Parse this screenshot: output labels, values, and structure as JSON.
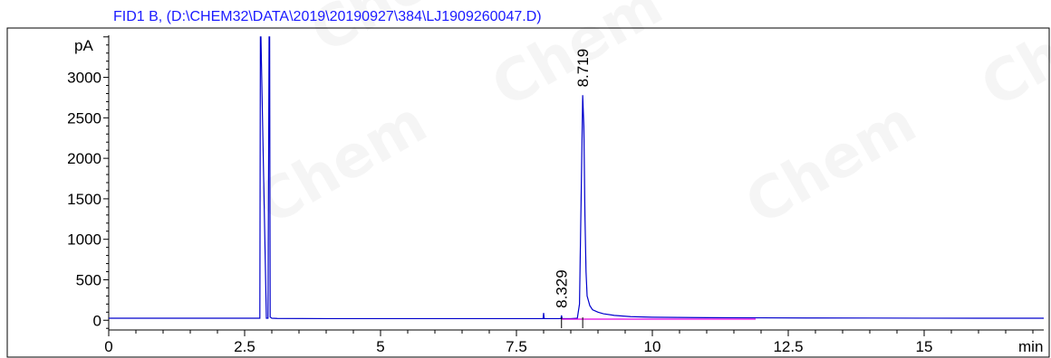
{
  "chart_data": {
    "type": "line",
    "title": "FID1 B,  (D:\\CHEM32\\DATA\\2019\\20190927\\384\\LJ1909260047.D)",
    "title_color": "#1a1aff",
    "ylabel": "pA",
    "xlabel": "min",
    "xlim": [
      0,
      17.2
    ],
    "ylim": [
      -120,
      3520
    ],
    "x_ticks": [
      0,
      2.5,
      5,
      7.5,
      10,
      12.5,
      15
    ],
    "x_tick_labels": [
      "0",
      "2.5",
      "5",
      "7.5",
      "10",
      "12.5",
      "15"
    ],
    "y_ticks": [
      0,
      500,
      1000,
      1500,
      2000,
      2500,
      3000
    ],
    "y_tick_labels": [
      "0",
      "500",
      "1000",
      "1500",
      "2000",
      "2500",
      "3000"
    ],
    "grid": false,
    "series": [
      {
        "color": "#0000cc",
        "x": [
          0,
          2.7,
          2.77,
          2.78,
          2.79,
          2.8,
          2.9,
          2.93,
          2.95,
          2.96,
          2.97,
          3.0,
          3.1,
          4,
          6,
          7.99,
          8.0,
          8.01,
          8.05,
          8.32,
          8.329,
          8.34,
          8.5,
          8.62,
          8.66,
          8.69,
          8.719,
          8.74,
          8.76,
          8.78,
          8.8,
          8.85,
          8.9,
          9.0,
          9.1,
          9.3,
          9.6,
          10,
          11,
          12,
          13,
          14,
          15,
          16,
          17.2
        ],
        "y": [
          25,
          25,
          25,
          25,
          3500,
          3500,
          25,
          25,
          3500,
          3500,
          40,
          25,
          22,
          20,
          20,
          20,
          90,
          20,
          20,
          20,
          60,
          20,
          20,
          25,
          200,
          1500,
          2780,
          2400,
          1300,
          600,
          300,
          180,
          130,
          100,
          80,
          60,
          45,
          38,
          32,
          30,
          28,
          27,
          26,
          25,
          25
        ]
      },
      {
        "color": "#e000e0",
        "x": [
          8.329,
          11.9
        ],
        "y": [
          14,
          14
        ]
      }
    ],
    "annotations": [
      {
        "text": "8.719",
        "x": 8.719,
        "y": 2790
      },
      {
        "text": "8.329",
        "x": 8.329,
        "y": 60
      }
    ]
  },
  "watermark_text": "Chem"
}
